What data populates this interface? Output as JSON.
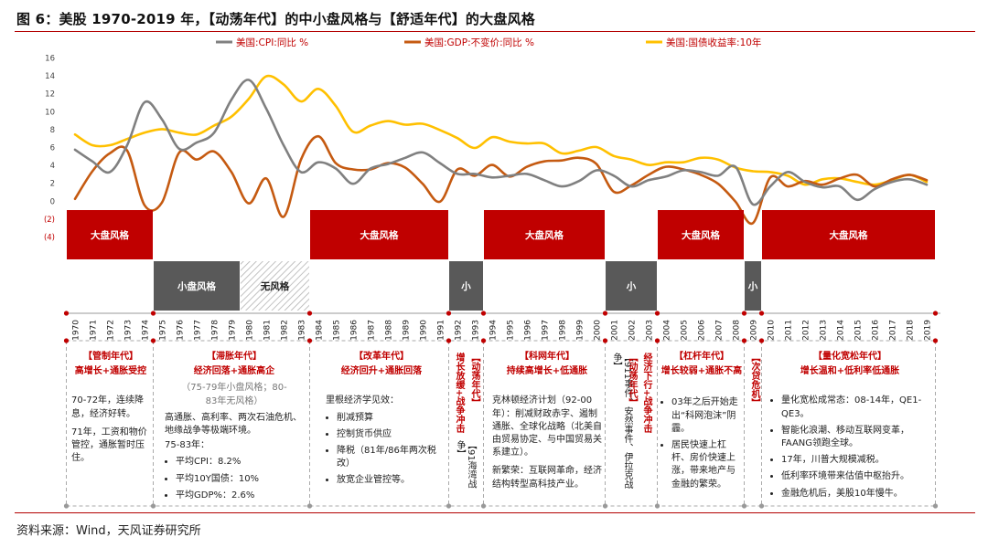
{
  "title": "图 6：美股 1970-2019 年，【动荡年代】的中小盘风格与【舒适年代】的大盘风格",
  "source": "资料来源：Wind，天风证券研究所",
  "colors": {
    "cpi": "#808080",
    "gdp": "#c55a11",
    "bond": "#ffc000",
    "red": "#c00000",
    "dark": "#595959",
    "gray": "#999999"
  },
  "chart_data": {
    "type": "line",
    "title": "",
    "x": [
      1970,
      1971,
      1972,
      1973,
      1974,
      1975,
      1976,
      1977,
      1978,
      1979,
      1980,
      1981,
      1982,
      1983,
      1984,
      1985,
      1986,
      1987,
      1988,
      1989,
      1990,
      1991,
      1992,
      1993,
      1994,
      1995,
      1996,
      1997,
      1998,
      1999,
      2000,
      2001,
      2002,
      2003,
      2004,
      2005,
      2006,
      2007,
      2008,
      2009,
      2010,
      2011,
      2012,
      2013,
      2014,
      2015,
      2016,
      2017,
      2018,
      2019
    ],
    "x_tick_labels": [
      "1970",
      "1971",
      "1972",
      "1973",
      "1974",
      "1975",
      "1976",
      "1977",
      "1978",
      "1979",
      "1980",
      "1981",
      "1982",
      "1983",
      "1984",
      "1985",
      "1986",
      "1987",
      "1988",
      "1989",
      "1990",
      "1991",
      "1992",
      "1993",
      "1994",
      "1995",
      "1996",
      "1997",
      "1998",
      "1999",
      "2000",
      "2001",
      "2002",
      "2003",
      "2004",
      "2005",
      "2006",
      "2007",
      "2008",
      "2009",
      "2010",
      "2011",
      "2012",
      "2013",
      "2014",
      "2015",
      "2016",
      "2017",
      "2018",
      "2019"
    ],
    "y_ticks": [
      "16",
      "14",
      "12",
      "10",
      "8",
      "6",
      "4",
      "2",
      "0",
      "(2)",
      "(4)"
    ],
    "ylim": [
      -4,
      16
    ],
    "legend": {
      "position": "top"
    },
    "series": [
      {
        "name": "美国:CPI:同比 %",
        "key": "cpi",
        "values": [
          5.7,
          4.4,
          3.2,
          6.2,
          11.0,
          9.1,
          5.8,
          6.5,
          7.6,
          11.3,
          13.5,
          10.3,
          6.2,
          3.2,
          4.3,
          3.6,
          1.9,
          3.6,
          4.1,
          4.8,
          5.4,
          4.2,
          3.0,
          3.0,
          2.6,
          2.8,
          3.0,
          2.3,
          1.6,
          2.2,
          3.4,
          2.8,
          1.6,
          2.3,
          2.7,
          3.4,
          3.2,
          2.8,
          3.8,
          -0.4,
          1.6,
          3.2,
          2.1,
          1.5,
          1.6,
          0.1,
          1.3,
          2.1,
          2.4,
          1.8
        ]
      },
      {
        "name": "美国:GDP:不变价:同比 %",
        "key": "gdp",
        "values": [
          0.2,
          3.3,
          5.3,
          5.6,
          -0.5,
          -0.2,
          5.4,
          4.6,
          5.5,
          3.2,
          -0.3,
          2.5,
          -1.8,
          4.6,
          7.2,
          4.2,
          3.5,
          3.5,
          4.2,
          3.7,
          1.9,
          -0.1,
          3.5,
          2.8,
          4.0,
          2.7,
          3.8,
          4.4,
          4.5,
          4.8,
          4.1,
          1.0,
          1.7,
          2.9,
          3.8,
          3.5,
          2.9,
          1.9,
          -0.1,
          -2.5,
          2.6,
          1.6,
          2.2,
          1.8,
          2.5,
          2.9,
          1.6,
          2.4,
          2.9,
          2.3
        ]
      },
      {
        "name": "美国:国债收益率:10年",
        "key": "bond",
        "values": [
          7.4,
          6.2,
          6.2,
          6.9,
          7.6,
          8.0,
          7.6,
          7.4,
          8.4,
          9.4,
          11.4,
          13.9,
          13.0,
          11.1,
          12.5,
          10.6,
          7.7,
          8.4,
          8.9,
          8.5,
          8.6,
          7.9,
          7.0,
          5.9,
          7.1,
          6.6,
          6.4,
          6.4,
          5.3,
          5.6,
          6.0,
          5.0,
          4.6,
          4.0,
          4.3,
          4.3,
          4.8,
          4.6,
          3.7,
          3.3,
          3.2,
          2.8,
          1.8,
          2.4,
          2.5,
          2.1,
          1.8,
          2.3,
          2.9,
          2.1
        ]
      }
    ]
  },
  "style_rows": {
    "large": [
      {
        "label": "大盘风格",
        "from": 1970,
        "to": 1974
      },
      {
        "label": "大盘风格",
        "from": 1984,
        "to": 1991
      },
      {
        "label": "大盘风格",
        "from": 1994,
        "to": 2000
      },
      {
        "label": "大盘风格",
        "from": 2004,
        "to": 2008
      },
      {
        "label": "大盘风格",
        "from": 2010,
        "to": 2019
      }
    ],
    "small": [
      {
        "label": "小盘风格",
        "from": 1975,
        "to": 1979
      },
      {
        "label": "小",
        "from": 1992,
        "to": 1993
      },
      {
        "label": "小",
        "from": 2001,
        "to": 2003
      },
      {
        "label": "小",
        "from": 2009,
        "to": 2009
      }
    ],
    "none": [
      {
        "label": "无风格",
        "from": 1980,
        "to": 1983
      }
    ]
  },
  "panels": {
    "p1": {
      "title": "【管制年代】",
      "subtitle": "高增长+通胀受控",
      "body": [
        "70-72年，连续降息，经济好转。",
        "71年，工资和物价管控，通胀暂时压住。"
      ]
    },
    "p2": {
      "title": "【滞胀年代】",
      "subtitle": "经济回落+通胀高企",
      "note": "（75-79年小盘风格；80-83年无风格）",
      "body": [
        "高通胀、高利率、两次石油危机、地缘战争等极端环境。",
        "75-83年："
      ],
      "bullets": [
        "平均CPI：8.2%",
        "平均10Y国债：10%",
        "平均GDP%：2.6%"
      ]
    },
    "p3": {
      "title": "【改革年代】",
      "subtitle": "经济回升+通胀回落",
      "body": [
        "里根经济学见效："
      ],
      "bullets": [
        "削减预算",
        "控制货币供应",
        "降税（81年/86年两次税改）",
        "放宽企业管控等。"
      ]
    },
    "p4": {
      "red": "增长放缓+战争冲击",
      "dark": "【91海湾战争】",
      "title": "【动荡年代】"
    },
    "p5": {
      "title": "【科网年代】",
      "subtitle": "持续高增长+低通胀",
      "body": [
        "克林顿经济计划（92-00年）：削减财政赤字、遏制通胀、全球化战略（北美自由贸易协定、与中国贸易关系建立）。",
        "新繁荣：互联网革命，经济结构转型高科技产业。"
      ]
    },
    "p6": {
      "dark": "【911事件、安然事件、伊拉克战争】",
      "title": "【动荡年代】",
      "red": "经济下行+战争冲击"
    },
    "p7": {
      "title": "【杠杆年代】",
      "subtitle": "增长较弱+通胀不高",
      "bullets": [
        "03年之后开始走出“科网泡沫”阴霾。",
        "居民快速上杠杆、房价快速上涨，带来地产与金融的繁荣。"
      ]
    },
    "p8": {
      "title": "【次贷危机】"
    },
    "p9": {
      "title": "【量化宽松年代】",
      "subtitle": "增长温和+低利率低通胀",
      "bullets": [
        "量化宽松成常态：08-14年，QE1-QE3。",
        "智能化浪潮、移动互联网变革，FAANG领跑全球。",
        "17年，川普大规模减税。",
        "低利率环境带来估值中枢抬升。",
        "金融危机后，美股10年慢牛。"
      ]
    }
  }
}
